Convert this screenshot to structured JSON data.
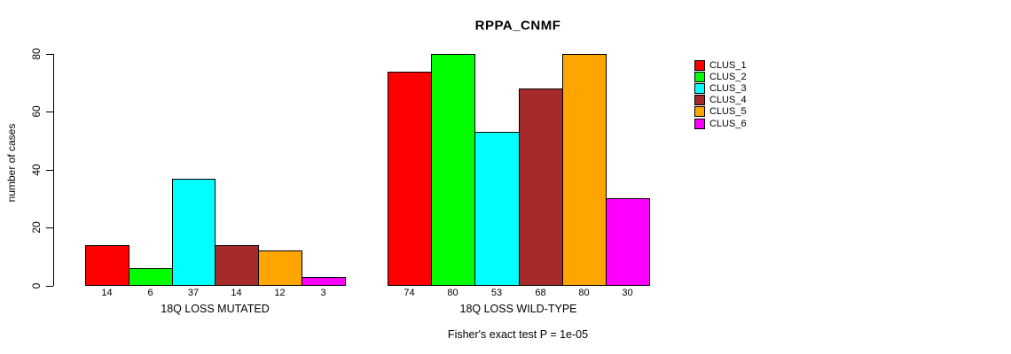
{
  "figure": {
    "title": "RPPA_CNMF",
    "ylabel": "number of cases",
    "footer": "Fisher's exact test P = 1e-05"
  },
  "chart_data": {
    "type": "bar",
    "title": "RPPA_CNMF",
    "xlabel": "",
    "ylabel": "number of cases",
    "ylim": [
      0,
      80
    ],
    "yticks": [
      0,
      20,
      40,
      60,
      80
    ],
    "grid": false,
    "legend_position": "right",
    "bar_value_labels_shown": true,
    "categories": [
      "18Q LOSS MUTATED",
      "18Q LOSS WILD-TYPE"
    ],
    "series": [
      {
        "name": "CLUS_1",
        "color": "#FF0000",
        "values": [
          14,
          74
        ]
      },
      {
        "name": "CLUS_2",
        "color": "#00FF00",
        "values": [
          6,
          80
        ]
      },
      {
        "name": "CLUS_3",
        "color": "#00FFFF",
        "values": [
          37,
          53
        ]
      },
      {
        "name": "CLUS_4",
        "color": "#A52A2A",
        "values": [
          14,
          68
        ]
      },
      {
        "name": "CLUS_5",
        "color": "#FFA500",
        "values": [
          12,
          80
        ]
      },
      {
        "name": "CLUS_6",
        "color": "#FF00FF",
        "values": [
          3,
          30
        ]
      }
    ],
    "annotation": "Fisher's exact test P = 1e-05"
  }
}
